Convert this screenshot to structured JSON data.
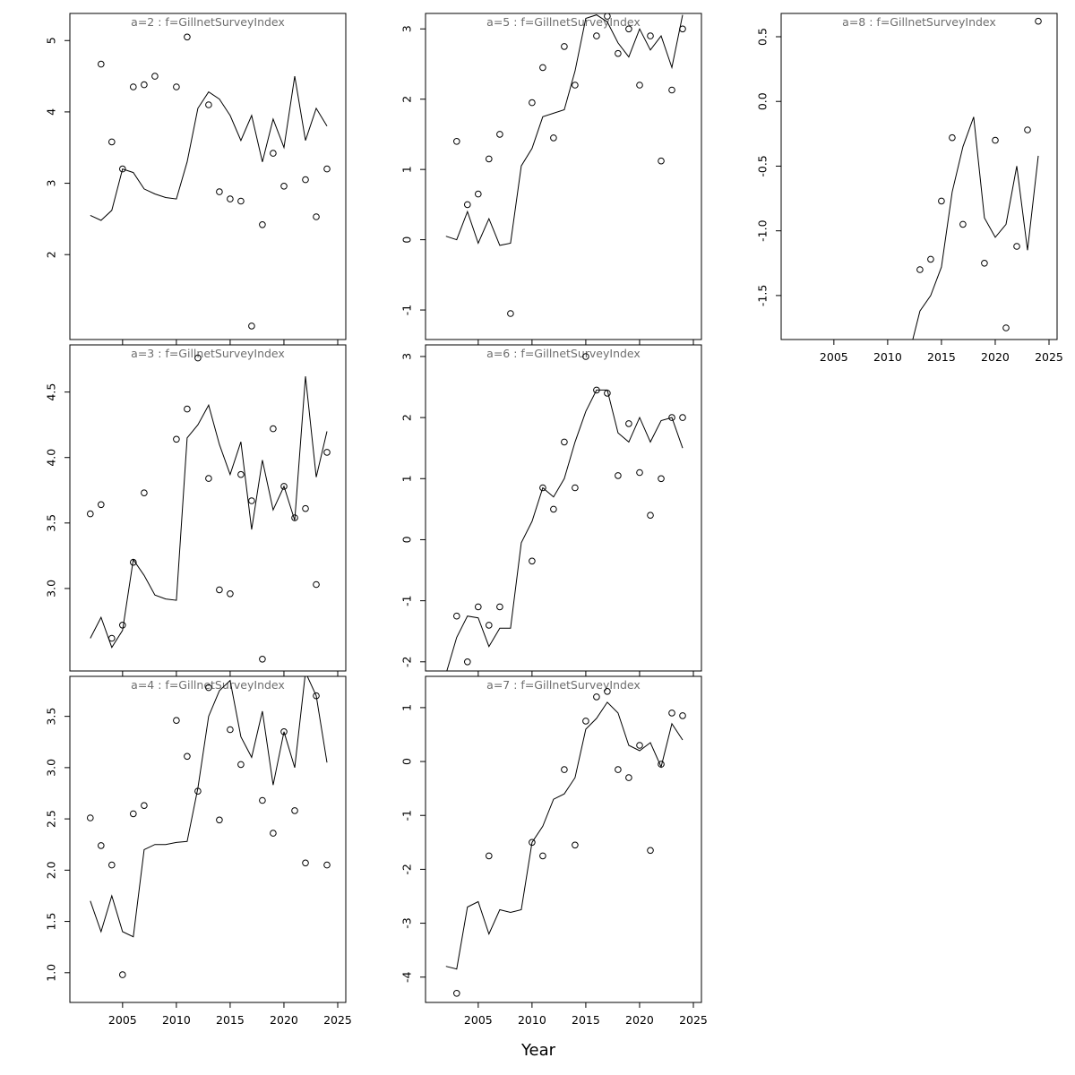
{
  "figure": {
    "xlabel": "Year",
    "colors": {
      "axis": "#000000",
      "title": "#6e6e6e",
      "line": "#000000",
      "point": "#000000",
      "background": "#ffffff"
    }
  },
  "chart_data": {
    "type": "multi-panel line+scatter",
    "x_axis": {
      "xlim": [
        2000.1,
        2025.75
      ],
      "ticks": [
        2005,
        2010,
        2015,
        2020,
        2025
      ],
      "labels": [
        "2005",
        "2010",
        "2015",
        "2020",
        "2025"
      ],
      "label": "Year"
    },
    "panels": [
      {
        "id": "a2",
        "type": "line+scatter",
        "title": "a=2  :  f=GillnetSurveyIndex",
        "ylim": [
          0.81,
          5.38
        ],
        "y_ticks": {
          "values": [
            2,
            3,
            4,
            5
          ],
          "labels": [
            "2",
            "3",
            "4",
            "5"
          ]
        },
        "show_x_labels": false,
        "points": [
          [
            2003,
            4.67
          ],
          [
            2004,
            3.58
          ],
          [
            2005,
            3.2
          ],
          [
            2006,
            4.35
          ],
          [
            2007,
            4.38
          ],
          [
            2008,
            4.5
          ],
          [
            2010,
            4.35
          ],
          [
            2011,
            5.05
          ],
          [
            2013,
            4.1
          ],
          [
            2014,
            2.88
          ],
          [
            2015,
            2.78
          ],
          [
            2016,
            2.75
          ],
          [
            2017,
            1.0
          ],
          [
            2018,
            2.42
          ],
          [
            2019,
            3.42
          ],
          [
            2020,
            2.96
          ],
          [
            2022,
            3.05
          ],
          [
            2023,
            2.53
          ],
          [
            2024,
            3.2
          ]
        ],
        "line": {
          "start": 2002,
          "values": [
            2.55,
            2.48,
            2.62,
            3.2,
            3.15,
            2.92,
            2.85,
            2.8,
            2.78,
            3.3,
            4.05,
            4.28,
            4.18,
            3.95,
            3.6,
            3.95,
            3.3,
            3.9,
            3.5,
            4.5,
            3.6,
            4.05,
            3.8
          ]
        }
      },
      {
        "id": "a5",
        "type": "line+scatter",
        "title": "a=5  :  f=GillnetSurveyIndex",
        "ylim": [
          -1.42,
          3.22
        ],
        "y_ticks": {
          "values": [
            -1,
            0,
            1,
            2,
            3
          ],
          "labels": [
            "-1",
            "0",
            "1",
            "2",
            "3"
          ]
        },
        "show_x_labels": false,
        "points": [
          [
            2003,
            1.4
          ],
          [
            2004,
            0.5
          ],
          [
            2005,
            0.65
          ],
          [
            2006,
            1.15
          ],
          [
            2007,
            1.5
          ],
          [
            2008,
            -1.05
          ],
          [
            2010,
            1.95
          ],
          [
            2011,
            2.45
          ],
          [
            2012,
            1.45
          ],
          [
            2013,
            2.75
          ],
          [
            2014,
            2.2
          ],
          [
            2016,
            2.9
          ],
          [
            2017,
            3.18
          ],
          [
            2018,
            2.65
          ],
          [
            2019,
            3.0
          ],
          [
            2020,
            2.2
          ],
          [
            2021,
            2.9
          ],
          [
            2022,
            1.12
          ],
          [
            2023,
            2.13
          ],
          [
            2024,
            3.0
          ]
        ],
        "line": {
          "start": 2002,
          "values": [
            0.05,
            0.0,
            0.4,
            -0.05,
            0.3,
            -0.08,
            -0.05,
            1.05,
            1.3,
            1.75,
            1.8,
            1.85,
            2.4,
            3.15,
            3.2,
            3.1,
            2.8,
            2.6,
            3.0,
            2.7,
            2.9,
            2.45,
            3.2
          ]
        }
      },
      {
        "id": "a8",
        "type": "line+scatter",
        "title": "a=8  :  f=GillnetSurveyIndex",
        "ylim": [
          -1.84,
          0.68
        ],
        "y_ticks": {
          "values": [
            -1.5,
            -1.0,
            -0.5,
            0.0,
            0.5
          ],
          "labels": [
            "-1.5",
            "-1.0",
            "-0.5",
            "0.0",
            "0.5"
          ]
        },
        "show_x_labels": true,
        "points": [
          [
            2013,
            -1.3
          ],
          [
            2014,
            -1.22
          ],
          [
            2015,
            -0.77
          ],
          [
            2016,
            -0.28
          ],
          [
            2017,
            -0.95
          ],
          [
            2019,
            -1.25
          ],
          [
            2020,
            -0.3
          ],
          [
            2021,
            -1.75
          ],
          [
            2022,
            -1.12
          ],
          [
            2023,
            -0.22
          ],
          [
            2024,
            0.62
          ]
        ],
        "line": {
          "start": 2012,
          "values": [
            -1.95,
            -1.62,
            -1.5,
            -1.28,
            -0.7,
            -0.35,
            -0.12,
            -0.9,
            -1.05,
            -0.95,
            -0.5,
            -1.15,
            -0.42
          ]
        }
      },
      {
        "id": "a3",
        "type": "line+scatter",
        "title": "a=3  :  f=GillnetSurveyIndex",
        "ylim": [
          2.37,
          4.86
        ],
        "y_ticks": {
          "values": [
            3.0,
            3.5,
            4.0,
            4.5
          ],
          "labels": [
            "3.0",
            "3.5",
            "4.0",
            "4.5"
          ]
        },
        "show_x_labels": false,
        "points": [
          [
            2002,
            3.57
          ],
          [
            2003,
            3.64
          ],
          [
            2004,
            2.62
          ],
          [
            2005,
            2.72
          ],
          [
            2006,
            3.2
          ],
          [
            2007,
            3.73
          ],
          [
            2010,
            4.14
          ],
          [
            2011,
            4.37
          ],
          [
            2012,
            4.76
          ],
          [
            2013,
            3.84
          ],
          [
            2014,
            2.99
          ],
          [
            2015,
            2.96
          ],
          [
            2016,
            3.87
          ],
          [
            2017,
            3.67
          ],
          [
            2018,
            2.46
          ],
          [
            2019,
            4.22
          ],
          [
            2020,
            3.78
          ],
          [
            2021,
            3.54
          ],
          [
            2022,
            3.61
          ],
          [
            2023,
            3.03
          ],
          [
            2024,
            4.04
          ]
        ],
        "line": {
          "start": 2002,
          "values": [
            2.62,
            2.78,
            2.55,
            2.68,
            3.22,
            3.1,
            2.95,
            2.92,
            2.91,
            4.15,
            4.25,
            4.4,
            4.1,
            3.87,
            4.12,
            3.45,
            3.98,
            3.6,
            3.78,
            3.52,
            4.62,
            3.85,
            4.2
          ]
        }
      },
      {
        "id": "a6",
        "type": "line+scatter",
        "title": "a=6  :  f=GillnetSurveyIndex",
        "ylim": [
          -2.15,
          3.19
        ],
        "y_ticks": {
          "values": [
            -2,
            -1,
            0,
            1,
            2,
            3
          ],
          "labels": [
            "-2",
            "-1",
            "0",
            "1",
            "2",
            "3"
          ]
        },
        "show_x_labels": false,
        "points": [
          [
            2003,
            -1.25
          ],
          [
            2004,
            -2.0
          ],
          [
            2005,
            -1.1
          ],
          [
            2006,
            -1.4
          ],
          [
            2007,
            -1.1
          ],
          [
            2010,
            -0.35
          ],
          [
            2011,
            0.85
          ],
          [
            2012,
            0.5
          ],
          [
            2013,
            1.6
          ],
          [
            2014,
            0.85
          ],
          [
            2015,
            3.0
          ],
          [
            2016,
            2.45
          ],
          [
            2017,
            2.4
          ],
          [
            2018,
            1.05
          ],
          [
            2019,
            1.9
          ],
          [
            2020,
            1.1
          ],
          [
            2021,
            0.4
          ],
          [
            2022,
            1.0
          ],
          [
            2023,
            2.0
          ],
          [
            2024,
            2.0
          ]
        ],
        "line": {
          "start": 2002,
          "values": [
            -2.2,
            -1.6,
            -1.25,
            -1.28,
            -1.75,
            -1.45,
            -1.45,
            -0.05,
            0.3,
            0.85,
            0.7,
            1.0,
            1.6,
            2.1,
            2.45,
            2.45,
            1.75,
            1.6,
            2.0,
            1.6,
            1.95,
            2.0,
            1.5
          ]
        }
      },
      {
        "id": "a4",
        "type": "line+scatter",
        "title": "a=4  :  f=GillnetSurveyIndex",
        "ylim": [
          0.71,
          3.89
        ],
        "y_ticks": {
          "values": [
            1.0,
            1.5,
            2.0,
            2.5,
            3.0,
            3.5
          ],
          "labels": [
            "1.0",
            "1.5",
            "2.0",
            "2.5",
            "3.0",
            "3.5"
          ]
        },
        "show_x_labels": true,
        "points": [
          [
            2002,
            2.51
          ],
          [
            2003,
            2.24
          ],
          [
            2004,
            2.05
          ],
          [
            2005,
            0.98
          ],
          [
            2006,
            2.55
          ],
          [
            2007,
            2.63
          ],
          [
            2010,
            3.46
          ],
          [
            2011,
            3.11
          ],
          [
            2012,
            2.77
          ],
          [
            2013,
            3.78
          ],
          [
            2014,
            2.49
          ],
          [
            2015,
            3.37
          ],
          [
            2016,
            3.03
          ],
          [
            2018,
            2.68
          ],
          [
            2019,
            2.36
          ],
          [
            2020,
            3.35
          ],
          [
            2021,
            2.58
          ],
          [
            2022,
            2.07
          ],
          [
            2023,
            3.7
          ],
          [
            2024,
            2.05
          ]
        ],
        "line": {
          "start": 2002,
          "values": [
            1.7,
            1.4,
            1.75,
            1.4,
            1.35,
            2.2,
            2.25,
            2.25,
            2.27,
            2.28,
            2.8,
            3.5,
            3.75,
            3.85,
            3.3,
            3.1,
            3.55,
            2.83,
            3.35,
            3.0,
            3.93,
            3.7,
            3.05
          ]
        }
      },
      {
        "id": "a7",
        "type": "line+scatter",
        "title": "a=7  :  f=GillnetSurveyIndex",
        "ylim": [
          -4.47,
          1.58
        ],
        "y_ticks": {
          "values": [
            -4,
            -3,
            -2,
            -1,
            0,
            1
          ],
          "labels": [
            "-4",
            "-3",
            "-2",
            "-1",
            "0",
            "1"
          ]
        },
        "show_x_labels": true,
        "points": [
          [
            2003,
            -4.3
          ],
          [
            2006,
            -1.75
          ],
          [
            2010,
            -1.5
          ],
          [
            2011,
            -1.75
          ],
          [
            2013,
            -0.15
          ],
          [
            2014,
            -1.55
          ],
          [
            2015,
            0.75
          ],
          [
            2016,
            1.2
          ],
          [
            2017,
            1.3
          ],
          [
            2018,
            -0.15
          ],
          [
            2019,
            -0.3
          ],
          [
            2020,
            0.3
          ],
          [
            2021,
            -1.65
          ],
          [
            2022,
            -0.05
          ],
          [
            2023,
            0.9
          ],
          [
            2024,
            0.85
          ]
        ],
        "line": {
          "start": 2002,
          "values": [
            -3.8,
            -3.85,
            -2.7,
            -2.6,
            -3.2,
            -2.75,
            -2.8,
            -2.75,
            -1.5,
            -1.2,
            -0.7,
            -0.6,
            -0.3,
            0.6,
            0.8,
            1.1,
            0.9,
            0.3,
            0.2,
            0.35,
            -0.1,
            0.7,
            0.4
          ]
        }
      }
    ]
  }
}
